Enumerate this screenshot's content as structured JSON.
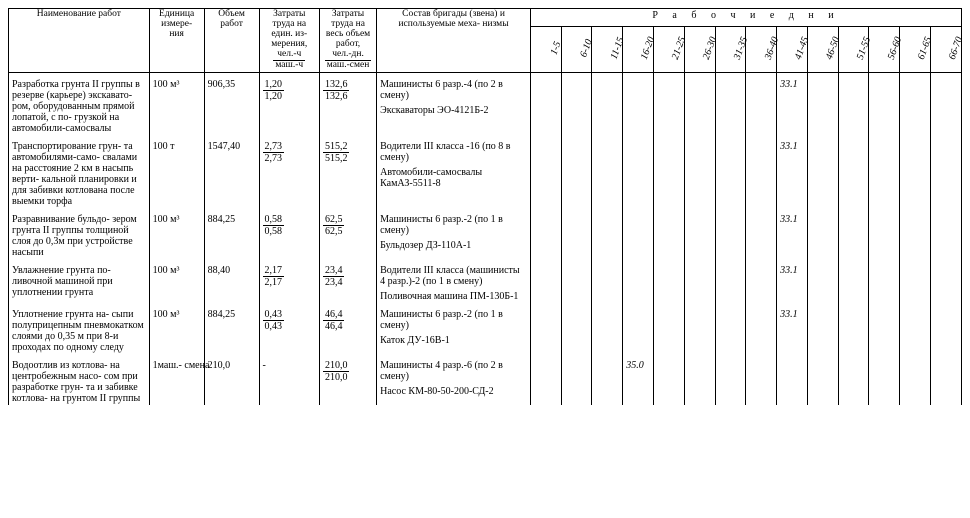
{
  "headers": {
    "name": "Наименование работ",
    "unit": "Единица измере-\nния",
    "volume": "Объем работ",
    "labor_unit": "Затраты труда на един. из-\nмерения,",
    "labor_unit_frac_top": "чел.-ч",
    "labor_unit_frac_bot": "маш.-ч",
    "labor_total": "Затраты труда на весь объем работ,",
    "labor_total_frac_top": "чел.-дн.",
    "labor_total_frac_bot": "маш.-смен",
    "crew": "Состав бригады (звена) и используемые меха-\nнизмы",
    "days_title": "Р а б о ч и е   д н и",
    "day_labels": [
      "1-5",
      "6-10",
      "11-15",
      "16-20",
      "21-25",
      "26-30",
      "31-35",
      "36-40",
      "41-45",
      "46-50",
      "51-55",
      "56-60",
      "61-65",
      "66-70"
    ]
  },
  "rows": [
    {
      "name": "Разработка грунта II группы в резерве (карьере) экскавато-\nром, оборудованным прямой лопатой, с по-\nгрузкой на автомобили-самосвалы",
      "unit": "100 м³",
      "volume": "906,35",
      "labor_unit_top": "1,20",
      "labor_unit_bot": "1,20",
      "labor_total_top": "132,6",
      "labor_total_bot": "132,6",
      "crew_line1": "Машинисты 6 разр.-4 (по 2 в смену)",
      "crew_line2": "Экскаваторы ЭО-4121Б-2",
      "gantt": "33.1",
      "gantt_col": 8
    },
    {
      "name": "Транспортирование грун-\nта автомобилями-само-\nсвалами на расстояние 2 км в насыпь верти-\nкальной планировки и для забивки котлована после выемки торфа",
      "unit": "100 т",
      "volume": "1547,40",
      "labor_unit_top": "2,73",
      "labor_unit_bot": "2,73",
      "labor_total_top": "515,2",
      "labor_total_bot": "515,2",
      "crew_line1": "Водители III класса -16 (по 8 в смену)",
      "crew_line2": "Автомобили-самосвалы КамАЗ-5511-8",
      "gantt": "33.1",
      "gantt_col": 8
    },
    {
      "name": "Разравнивание бульдо-\nзером грунта II группы толщиной слоя до 0,3м при устройстве насыпи",
      "unit": "100 м³",
      "volume": "884,25",
      "labor_unit_top": "0,58",
      "labor_unit_bot": "0,58",
      "labor_total_top": "62,5",
      "labor_total_bot": "62,5",
      "crew_line1": "Машинисты 6 разр.-2 (по 1 в смену)",
      "crew_line2": "Бульдозер ДЗ-110А-1",
      "gantt": "33.1",
      "gantt_col": 8
    },
    {
      "name": "Увлажнение грунта по-\nливочной машиной при уплотнении грунта",
      "unit": "100 м³",
      "volume": "88,40",
      "labor_unit_top": "2,17",
      "labor_unit_bot": "2,17",
      "labor_total_top": "23,4",
      "labor_total_bot": "23,4",
      "crew_line1": "Водители III класса (машинисты 4 разр.)-2 (по 1 в смену)",
      "crew_line2": "Поливочная машина ПМ-130Б-1",
      "gantt": "33.1",
      "gantt_col": 8
    },
    {
      "name": "Уплотнение грунта на-\nсыпи полуприцепным пневмокатком слоями до 0,35 м при 8-и проходах по одному следу",
      "unit": "100 м³",
      "volume": "884,25",
      "labor_unit_top": "0,43",
      "labor_unit_bot": "0,43",
      "labor_total_top": "46,4",
      "labor_total_bot": "46,4",
      "crew_line1": "Машинисты 6 разр.-2 (по 1 в смену)",
      "crew_line2": "Каток ДУ-16В-1",
      "gantt": "33.1",
      "gantt_col": 8
    },
    {
      "name": "Водоотлив из котлова-\nна центробежным насо-\nсом при разработке грун-\nта и забивке котлова-\nна грунтом II группы",
      "unit": "1маш.-\nсмена",
      "volume": "210,0",
      "labor_unit_top": "-",
      "labor_unit_bot": "",
      "labor_total_top": "210,0",
      "labor_total_bot": "210,0",
      "crew_line1": "Машинисты 4 разр.-6 (по 2 в смену)",
      "crew_line2": "Насос КМ-80-50-200-СД-2",
      "gantt": "35.0",
      "gantt_col": 3
    }
  ]
}
